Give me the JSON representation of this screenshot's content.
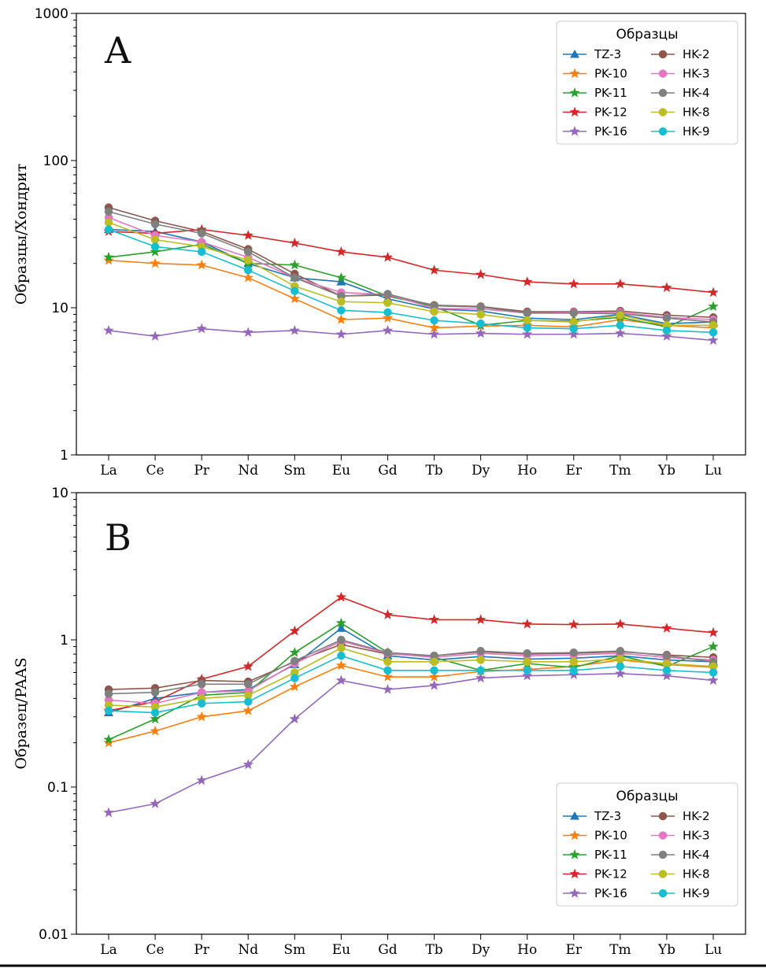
{
  "chart_data": [
    {
      "type": "line",
      "panel": "A",
      "ylabel": "Образцы/Хондрит",
      "yscale": "log",
      "ylim": [
        1,
        1000
      ],
      "yticks": [
        "1",
        "10",
        "100",
        "1000"
      ],
      "grid": false,
      "legend_title": "Образцы",
      "legend_position": "top-right",
      "categories": [
        "La",
        "Ce",
        "Pr",
        "Nd",
        "Sm",
        "Eu",
        "Gd",
        "Tb",
        "Dy",
        "Ho",
        "Er",
        "Tm",
        "Yb",
        "Lu"
      ],
      "series": [
        {
          "name": "TZ-3",
          "color": "#1f77b4",
          "marker": "triangle",
          "values": [
            34,
            33,
            28,
            20,
            16,
            15,
            11.5,
            9.8,
            9.5,
            8.5,
            8.3,
            9.0,
            7.8,
            8.0
          ]
        },
        {
          "name": "PK-10",
          "color": "#ff7f0e",
          "marker": "star",
          "values": [
            21,
            20,
            19.5,
            16,
            11.5,
            8.3,
            8.5,
            7.3,
            7.5,
            7.6,
            7.4,
            8.3,
            7.6,
            7.3
          ]
        },
        {
          "name": "PK-11",
          "color": "#2ca02c",
          "marker": "star",
          "values": [
            22,
            24,
            27,
            20,
            19.5,
            16,
            12,
            10.2,
            7.6,
            8.2,
            8.1,
            8.6,
            7.4,
            10.2
          ]
        },
        {
          "name": "PK-12",
          "color": "#d62728",
          "marker": "star",
          "values": [
            33,
            32,
            34,
            31,
            27.5,
            24,
            22,
            18,
            16.8,
            15,
            14.5,
            14.5,
            13.7,
            12.7
          ]
        },
        {
          "name": "PK-16",
          "color": "#9467bd",
          "marker": "star",
          "values": [
            7.0,
            6.4,
            7.2,
            6.8,
            7.0,
            6.6,
            7.0,
            6.6,
            6.7,
            6.6,
            6.6,
            6.7,
            6.4,
            6.0
          ]
        },
        {
          "name": "HK-2",
          "color": "#8c564b",
          "marker": "circle",
          "values": [
            48,
            39,
            33,
            25,
            17,
            12,
            12.2,
            10.4,
            10.2,
            9.4,
            9.4,
            9.5,
            8.9,
            8.6
          ]
        },
        {
          "name": "HK-3",
          "color": "#e377c2",
          "marker": "circle",
          "values": [
            41,
            31,
            28,
            22,
            16,
            12.7,
            12.3,
            9.9,
            9.8,
            9.2,
            9.3,
            9.3,
            8.6,
            8.3
          ]
        },
        {
          "name": "HK-4",
          "color": "#7f7f7f",
          "marker": "circle",
          "values": [
            45,
            37,
            32,
            24,
            16,
            12,
            12.4,
            10.3,
            10.1,
            9.2,
            9.2,
            9.1,
            8.5,
            8.0
          ]
        },
        {
          "name": "HK-8",
          "color": "#bcbd22",
          "marker": "circle",
          "values": [
            38,
            29,
            26,
            21,
            14,
            11,
            10.8,
            9.4,
            9.0,
            8.2,
            8.0,
            8.9,
            7.6,
            7.6
          ]
        },
        {
          "name": "HK-9",
          "color": "#17becf",
          "marker": "circle",
          "values": [
            34,
            26,
            24,
            18,
            13,
            9.6,
            9.3,
            8.2,
            7.8,
            7.3,
            7.2,
            7.6,
            7.0,
            6.8
          ]
        }
      ]
    },
    {
      "type": "line",
      "panel": "B",
      "ylabel": "Образец/PAAS",
      "yscale": "log",
      "ylim": [
        0.01,
        10
      ],
      "yticks": [
        "0.01",
        "0.1",
        "1",
        "10"
      ],
      "grid": false,
      "legend_title": "Образцы",
      "legend_position": "bottom-right",
      "categories": [
        "La",
        "Ce",
        "Pr",
        "Nd",
        "Sm",
        "Eu",
        "Gd",
        "Tb",
        "Dy",
        "Ho",
        "Er",
        "Tm",
        "Yb",
        "Lu"
      ],
      "series": [
        {
          "name": "TZ-3",
          "color": "#1f77b4",
          "marker": "triangle",
          "values": [
            0.32,
            0.4,
            0.44,
            0.46,
            0.68,
            1.2,
            0.78,
            0.73,
            0.77,
            0.74,
            0.75,
            0.78,
            0.73,
            0.71
          ]
        },
        {
          "name": "PK-10",
          "color": "#ff7f0e",
          "marker": "star",
          "values": [
            0.2,
            0.24,
            0.3,
            0.33,
            0.48,
            0.67,
            0.56,
            0.56,
            0.61,
            0.63,
            0.66,
            0.73,
            0.68,
            0.65
          ]
        },
        {
          "name": "PK-11",
          "color": "#2ca02c",
          "marker": "star",
          "values": [
            0.21,
            0.29,
            0.42,
            0.44,
            0.82,
            1.3,
            0.82,
            0.76,
            0.62,
            0.69,
            0.65,
            0.78,
            0.66,
            0.9
          ]
        },
        {
          "name": "PK-12",
          "color": "#d62728",
          "marker": "star",
          "values": [
            0.33,
            0.38,
            0.54,
            0.66,
            1.15,
            1.95,
            1.48,
            1.37,
            1.37,
            1.28,
            1.27,
            1.28,
            1.2,
            1.12
          ]
        },
        {
          "name": "PK-16",
          "color": "#9467bd",
          "marker": "star",
          "values": [
            0.067,
            0.077,
            0.111,
            0.142,
            0.29,
            0.53,
            0.46,
            0.49,
            0.55,
            0.57,
            0.58,
            0.59,
            0.57,
            0.53
          ]
        },
        {
          "name": "HK-2",
          "color": "#8c564b",
          "marker": "circle",
          "values": [
            0.46,
            0.47,
            0.53,
            0.52,
            0.71,
            0.93,
            0.8,
            0.78,
            0.83,
            0.8,
            0.81,
            0.83,
            0.79,
            0.76
          ]
        },
        {
          "name": "HK-3",
          "color": "#e377c2",
          "marker": "circle",
          "values": [
            0.39,
            0.37,
            0.44,
            0.45,
            0.69,
            0.98,
            0.81,
            0.76,
            0.81,
            0.78,
            0.79,
            0.81,
            0.76,
            0.73
          ]
        },
        {
          "name": "HK-4",
          "color": "#7f7f7f",
          "marker": "circle",
          "values": [
            0.43,
            0.44,
            0.5,
            0.5,
            0.72,
            1.0,
            0.82,
            0.78,
            0.84,
            0.81,
            0.82,
            0.84,
            0.78,
            0.71
          ]
        },
        {
          "name": "HK-8",
          "color": "#bcbd22",
          "marker": "circle",
          "values": [
            0.36,
            0.35,
            0.4,
            0.42,
            0.6,
            0.88,
            0.71,
            0.71,
            0.73,
            0.71,
            0.71,
            0.74,
            0.69,
            0.66
          ]
        },
        {
          "name": "HK-9",
          "color": "#17becf",
          "marker": "circle",
          "values": [
            0.33,
            0.32,
            0.37,
            0.38,
            0.55,
            0.78,
            0.62,
            0.62,
            0.62,
            0.62,
            0.62,
            0.66,
            0.62,
            0.6
          ]
        }
      ]
    }
  ]
}
